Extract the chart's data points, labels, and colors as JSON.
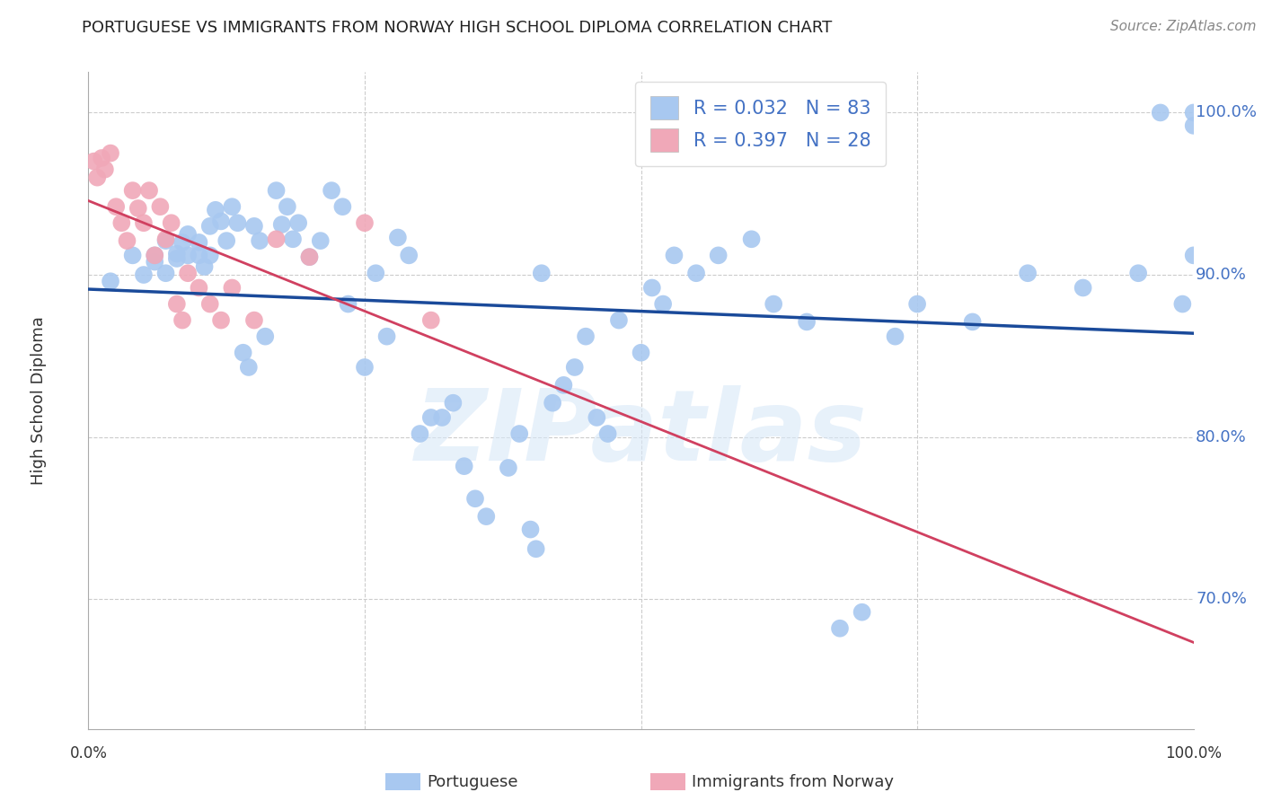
{
  "title": "PORTUGUESE VS IMMIGRANTS FROM NORWAY HIGH SCHOOL DIPLOMA CORRELATION CHART",
  "source": "Source: ZipAtlas.com",
  "ylabel": "High School Diploma",
  "legend_label1": "Portuguese",
  "legend_label2": "Immigrants from Norway",
  "r1": 0.032,
  "n1": 83,
  "r2": 0.397,
  "n2": 28,
  "color_blue": "#A8C8F0",
  "color_blue_line": "#1A4A9A",
  "color_pink": "#F0A8B8",
  "color_pink_line": "#D04060",
  "watermark": "ZIPatlas",
  "xlim": [
    0.0,
    1.0
  ],
  "ylim": [
    0.62,
    1.025
  ],
  "yticks": [
    0.7,
    0.8,
    0.9,
    1.0
  ],
  "ytick_labels": [
    "70.0%",
    "80.0%",
    "90.0%",
    "100.0%"
  ],
  "blue_x": [
    0.02,
    0.04,
    0.05,
    0.06,
    0.06,
    0.07,
    0.07,
    0.08,
    0.08,
    0.085,
    0.09,
    0.09,
    0.1,
    0.1,
    0.105,
    0.11,
    0.11,
    0.115,
    0.12,
    0.125,
    0.13,
    0.135,
    0.14,
    0.145,
    0.15,
    0.155,
    0.16,
    0.17,
    0.175,
    0.18,
    0.185,
    0.19,
    0.2,
    0.21,
    0.22,
    0.23,
    0.235,
    0.25,
    0.26,
    0.27,
    0.28,
    0.29,
    0.3,
    0.31,
    0.32,
    0.33,
    0.34,
    0.35,
    0.36,
    0.38,
    0.39,
    0.4,
    0.405,
    0.41,
    0.42,
    0.43,
    0.44,
    0.45,
    0.46,
    0.47,
    0.48,
    0.5,
    0.51,
    0.52,
    0.53,
    0.55,
    0.57,
    0.6,
    0.62,
    0.65,
    0.68,
    0.7,
    0.73,
    0.75,
    0.8,
    0.85,
    0.9,
    0.95,
    0.97,
    0.99,
    1.0,
    1.0,
    1.0
  ],
  "blue_y": [
    0.896,
    0.912,
    0.9,
    0.912,
    0.908,
    0.921,
    0.901,
    0.913,
    0.91,
    0.92,
    0.925,
    0.912,
    0.92,
    0.912,
    0.905,
    0.93,
    0.912,
    0.94,
    0.933,
    0.921,
    0.942,
    0.932,
    0.852,
    0.843,
    0.93,
    0.921,
    0.862,
    0.952,
    0.931,
    0.942,
    0.922,
    0.932,
    0.911,
    0.921,
    0.952,
    0.942,
    0.882,
    0.843,
    0.901,
    0.862,
    0.923,
    0.912,
    0.802,
    0.812,
    0.812,
    0.821,
    0.782,
    0.762,
    0.751,
    0.781,
    0.802,
    0.743,
    0.731,
    0.901,
    0.821,
    0.832,
    0.843,
    0.862,
    0.812,
    0.802,
    0.872,
    0.852,
    0.892,
    0.882,
    0.912,
    0.901,
    0.912,
    0.922,
    0.882,
    0.871,
    0.682,
    0.692,
    0.862,
    0.882,
    0.871,
    0.901,
    0.892,
    0.901,
    1.0,
    0.882,
    1.0,
    0.992,
    0.912
  ],
  "pink_x": [
    0.005,
    0.008,
    0.012,
    0.015,
    0.02,
    0.025,
    0.03,
    0.035,
    0.04,
    0.045,
    0.05,
    0.055,
    0.06,
    0.065,
    0.07,
    0.075,
    0.08,
    0.085,
    0.09,
    0.1,
    0.11,
    0.12,
    0.13,
    0.15,
    0.17,
    0.2,
    0.25,
    0.31
  ],
  "pink_y": [
    0.97,
    0.96,
    0.972,
    0.965,
    0.975,
    0.942,
    0.932,
    0.921,
    0.952,
    0.941,
    0.932,
    0.952,
    0.912,
    0.942,
    0.922,
    0.932,
    0.882,
    0.872,
    0.901,
    0.892,
    0.882,
    0.872,
    0.892,
    0.872,
    0.922,
    0.911,
    0.932,
    0.872
  ]
}
